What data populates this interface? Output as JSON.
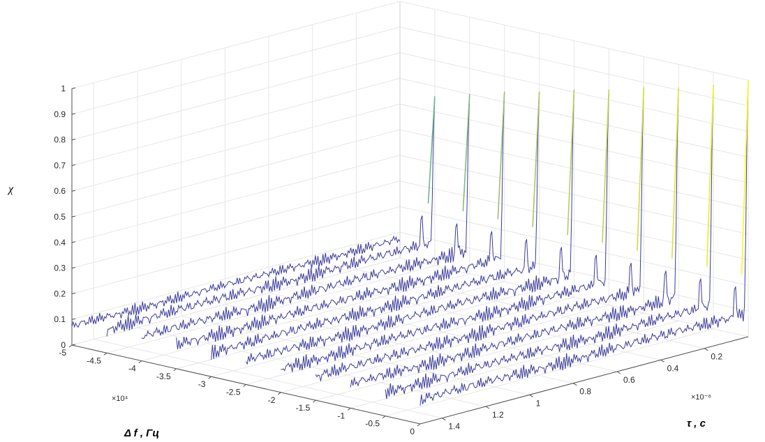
{
  "chart_data": {
    "type": "surface-3d",
    "zlabel": "χ",
    "xlabel": "Δ f , Гц",
    "ylabel": "τ , с",
    "x_exponent": "×10⁴",
    "y_exponent": "×10⁻⁶",
    "xlim": [
      -5,
      0
    ],
    "ylim": [
      0,
      1.5
    ],
    "zlim": [
      0,
      1
    ],
    "x_ticks": [
      "-5",
      "-4.5",
      "-4",
      "-3.5",
      "-3",
      "-2.5",
      "-2",
      "-1.5",
      "-1",
      "-0.5",
      "0"
    ],
    "y_ticks": [
      "0.2",
      "0.4",
      "0.6",
      "0.8",
      "1",
      "1.2",
      "1.4"
    ],
    "z_ticks": [
      "0",
      "0.1",
      "0.2",
      "0.3",
      "0.4",
      "0.5",
      "0.6",
      "0.7",
      "0.8",
      "0.9",
      "1"
    ],
    "grid": true,
    "colormap": "parula",
    "series": [
      {
        "df": -5.0,
        "peak": 0.04
      },
      {
        "df": -4.5,
        "peak": 0.66
      },
      {
        "df": -4.0,
        "peak": 0.7
      },
      {
        "df": -3.5,
        "peak": 0.74
      },
      {
        "df": -3.0,
        "peak": 0.77
      },
      {
        "df": -2.5,
        "peak": 0.81
      },
      {
        "df": -2.0,
        "peak": 0.84
      },
      {
        "df": -1.5,
        "peak": 0.88
      },
      {
        "df": -1.0,
        "peak": 0.91
      },
      {
        "df": -0.5,
        "peak": 0.95
      },
      {
        "df": 0.0,
        "peak": 1.0
      }
    ]
  }
}
